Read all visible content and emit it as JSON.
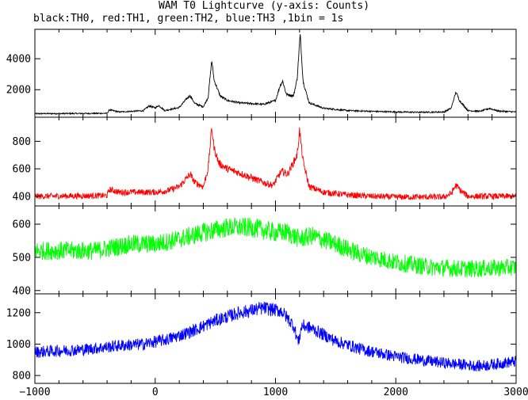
{
  "chart_data": {
    "type": "line",
    "title": "WAM T0 Lightcurve (y-axis: Counts)",
    "subtitle": "black:TH0, red:TH1, green:TH2, blue:TH3 ,1bin = 1s",
    "xlim": [
      -1000,
      3000
    ],
    "x_ticks": [
      -1000,
      0,
      1000,
      2000,
      3000
    ],
    "x_tick_labels": [
      "−1000",
      "0",
      "1000",
      "2000",
      "3000"
    ],
    "panels": [
      {
        "series_name": "TH0",
        "color": "#000000",
        "ylim": [
          220,
          5900
        ],
        "y_ticks": [
          2000,
          4000
        ],
        "baseline": [
          [
            -1000,
            450
          ],
          [
            -400,
            470
          ],
          [
            -380,
            700
          ],
          [
            -300,
            560
          ],
          [
            -100,
            640
          ],
          [
            -50,
            950
          ],
          [
            0,
            820
          ],
          [
            30,
            980
          ],
          [
            80,
            650
          ],
          [
            200,
            850
          ],
          [
            260,
            1400
          ],
          [
            290,
            1620
          ],
          [
            330,
            1100
          ],
          [
            400,
            900
          ],
          [
            440,
            1500
          ],
          [
            470,
            3900
          ],
          [
            490,
            2600
          ],
          [
            540,
            1600
          ],
          [
            600,
            1300
          ],
          [
            700,
            1150
          ],
          [
            900,
            1050
          ],
          [
            1000,
            1300
          ],
          [
            1040,
            2300
          ],
          [
            1060,
            2550
          ],
          [
            1090,
            1700
          ],
          [
            1150,
            1600
          ],
          [
            1180,
            2700
          ],
          [
            1205,
            5600
          ],
          [
            1230,
            2500
          ],
          [
            1280,
            1150
          ],
          [
            1400,
            800
          ],
          [
            1600,
            650
          ],
          [
            1800,
            600
          ],
          [
            2000,
            560
          ],
          [
            2200,
            540
          ],
          [
            2300,
            550
          ],
          [
            2400,
            560
          ],
          [
            2460,
            800
          ],
          [
            2500,
            1850
          ],
          [
            2530,
            1300
          ],
          [
            2600,
            650
          ],
          [
            2700,
            600
          ],
          [
            2780,
            790
          ],
          [
            2850,
            620
          ],
          [
            3000,
            560
          ]
        ],
        "noise": 40
      },
      {
        "series_name": "TH1",
        "color": "#ff0000",
        "ylim": [
          330,
          975
        ],
        "y_ticks": [
          400,
          600,
          800
        ],
        "baseline": [
          [
            -1000,
            400
          ],
          [
            -400,
            405
          ],
          [
            -380,
            450
          ],
          [
            -300,
            430
          ],
          [
            0,
            430
          ],
          [
            100,
            440
          ],
          [
            200,
            470
          ],
          [
            260,
            530
          ],
          [
            290,
            560
          ],
          [
            330,
            500
          ],
          [
            400,
            470
          ],
          [
            440,
            600
          ],
          [
            470,
            900
          ],
          [
            490,
            750
          ],
          [
            530,
            640
          ],
          [
            600,
            600
          ],
          [
            700,
            570
          ],
          [
            900,
            500
          ],
          [
            980,
            480
          ],
          [
            1040,
            570
          ],
          [
            1060,
            580
          ],
          [
            1100,
            560
          ],
          [
            1180,
            700
          ],
          [
            1200,
            880
          ],
          [
            1230,
            650
          ],
          [
            1280,
            470
          ],
          [
            1400,
            430
          ],
          [
            1600,
            410
          ],
          [
            1800,
            400
          ],
          [
            2000,
            395
          ],
          [
            2400,
            395
          ],
          [
            2460,
            420
          ],
          [
            2500,
            480
          ],
          [
            2540,
            440
          ],
          [
            2600,
            400
          ],
          [
            3000,
            400
          ]
        ],
        "noise": 22
      },
      {
        "series_name": "TH2",
        "color": "#00ff00",
        "ylim": [
          390,
          655
        ],
        "y_ticks": [
          400,
          500,
          600
        ],
        "baseline": [
          [
            -1000,
            520
          ],
          [
            -500,
            520
          ],
          [
            -200,
            540
          ],
          [
            0,
            540
          ],
          [
            200,
            555
          ],
          [
            400,
            575
          ],
          [
            600,
            590
          ],
          [
            800,
            590
          ],
          [
            1000,
            575
          ],
          [
            1100,
            575
          ],
          [
            1200,
            555
          ],
          [
            1300,
            565
          ],
          [
            1500,
            540
          ],
          [
            1700,
            510
          ],
          [
            2000,
            485
          ],
          [
            2300,
            470
          ],
          [
            2600,
            465
          ],
          [
            3000,
            470
          ]
        ],
        "noise": 28
      },
      {
        "series_name": "TH3",
        "color": "#0000ff",
        "ylim": [
          750,
          1320
        ],
        "y_ticks": [
          800,
          1000,
          1200
        ],
        "baseline": [
          [
            -1000,
            950
          ],
          [
            -600,
            965
          ],
          [
            -300,
            990
          ],
          [
            -100,
            1000
          ],
          [
            100,
            1030
          ],
          [
            300,
            1080
          ],
          [
            500,
            1150
          ],
          [
            700,
            1200
          ],
          [
            900,
            1230
          ],
          [
            1050,
            1210
          ],
          [
            1150,
            1120
          ],
          [
            1190,
            1010
          ],
          [
            1220,
            1120
          ],
          [
            1300,
            1100
          ],
          [
            1500,
            1020
          ],
          [
            1700,
            970
          ],
          [
            2000,
            920
          ],
          [
            2400,
            880
          ],
          [
            2700,
            860
          ],
          [
            3000,
            890
          ]
        ],
        "noise": 38
      }
    ]
  }
}
